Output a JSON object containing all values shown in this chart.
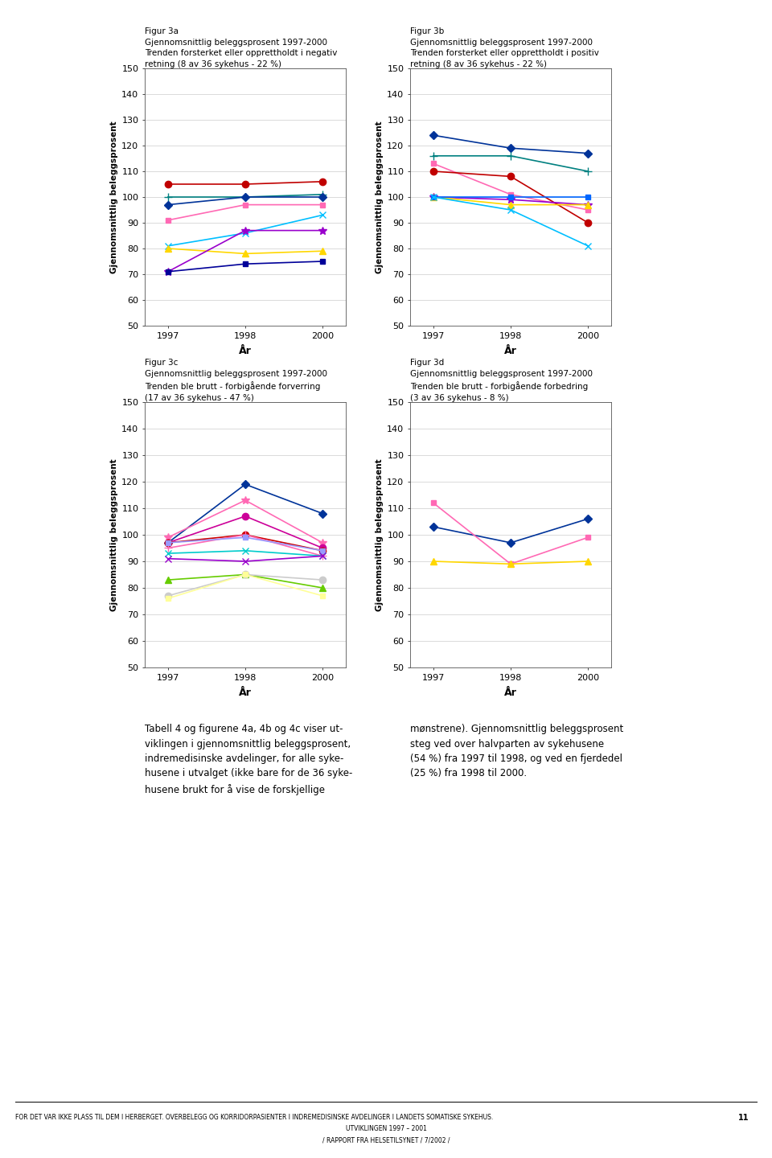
{
  "years": [
    1997,
    1998,
    2000
  ],
  "fig3a_title_line1": "Figur 3a",
  "fig3a_title_line2": "Gjennomsnittlig beleggsprosent 1997-2000",
  "fig3a_title_line3": "Trenden forsterket eller opprettholdt i negativ",
  "fig3a_title_line4": "retning (8 av 36 sykehus - 22 %)",
  "fig3a_series": [
    {
      "color": "#C00000",
      "marker": "o",
      "data": [
        105,
        105,
        106
      ],
      "ms": 6
    },
    {
      "color": "#008080",
      "marker": "+",
      "data": [
        100,
        100,
        101
      ],
      "ms": 7
    },
    {
      "color": "#003399",
      "marker": "D",
      "data": [
        97,
        100,
        100
      ],
      "ms": 5
    },
    {
      "color": "#FF69B4",
      "marker": "s",
      "data": [
        91,
        97,
        97
      ],
      "ms": 5
    },
    {
      "color": "#00BFFF",
      "marker": "x",
      "data": [
        81,
        86,
        93
      ],
      "ms": 6
    },
    {
      "color": "#FFD700",
      "marker": "^",
      "data": [
        80,
        78,
        79
      ],
      "ms": 6
    },
    {
      "color": "#9900CC",
      "marker": "*",
      "data": [
        71,
        87,
        87
      ],
      "ms": 7
    },
    {
      "color": "#000099",
      "marker": "s",
      "data": [
        71,
        74,
        75
      ],
      "ms": 5
    }
  ],
  "fig3b_title_line1": "Figur 3b",
  "fig3b_title_line2": "Gjennomsnittlig beleggsprosent 1997-2000",
  "fig3b_title_line3": "Trenden forsterket eller opprettholdt i positiv",
  "fig3b_title_line4": "retning (8 av 36 sykehus - 22 %)",
  "fig3b_series": [
    {
      "color": "#003399",
      "marker": "D",
      "data": [
        124,
        119,
        117
      ],
      "ms": 5
    },
    {
      "color": "#008080",
      "marker": "+",
      "data": [
        116,
        116,
        110
      ],
      "ms": 7
    },
    {
      "color": "#FF69B4",
      "marker": "s",
      "data": [
        113,
        101,
        95
      ],
      "ms": 5
    },
    {
      "color": "#C00000",
      "marker": "o",
      "data": [
        110,
        108,
        90
      ],
      "ms": 6
    },
    {
      "color": "#9900CC",
      "marker": "*",
      "data": [
        100,
        99,
        97
      ],
      "ms": 7
    },
    {
      "color": "#FFD700",
      "marker": "^",
      "data": [
        100,
        97,
        97
      ],
      "ms": 6
    },
    {
      "color": "#0066FF",
      "marker": "s",
      "data": [
        100,
        100,
        100
      ],
      "ms": 5
    },
    {
      "color": "#00BFFF",
      "marker": "x",
      "data": [
        100,
        95,
        81
      ],
      "ms": 6
    }
  ],
  "fig3c_title_line1": "Figur 3c",
  "fig3c_title_line2": "Gjennomsnittlig beleggsprosent 1997-2000",
  "fig3c_title_line3": "Trenden ble brutt - forbigående forverring",
  "fig3c_title_line4": "(17 av 36 sykehus - 47 %)",
  "fig3c_series": [
    {
      "color": "#003399",
      "marker": "D",
      "data": [
        97,
        119,
        108
      ],
      "ms": 5
    },
    {
      "color": "#FF69B4",
      "marker": "*",
      "data": [
        99,
        113,
        97
      ],
      "ms": 7
    },
    {
      "color": "#CC0099",
      "marker": "o",
      "data": [
        97,
        107,
        95
      ],
      "ms": 6
    },
    {
      "color": "#CC0000",
      "marker": "o",
      "data": [
        97,
        100,
        94
      ],
      "ms": 6
    },
    {
      "color": "#FF69B4",
      "marker": "+",
      "data": [
        95,
        100,
        92
      ],
      "ms": 7
    },
    {
      "color": "#9999FF",
      "marker": "s",
      "data": [
        97,
        99,
        94
      ],
      "ms": 5
    },
    {
      "color": "#00CCCC",
      "marker": "x",
      "data": [
        93,
        94,
        92
      ],
      "ms": 6
    },
    {
      "color": "#9900CC",
      "marker": "x",
      "data": [
        91,
        90,
        92
      ],
      "ms": 6
    },
    {
      "color": "#66CC00",
      "marker": "^",
      "data": [
        83,
        85,
        80
      ],
      "ms": 6
    },
    {
      "color": "#CCCCCC",
      "marker": "o",
      "data": [
        77,
        85,
        83
      ],
      "ms": 6
    },
    {
      "color": "#FFFF99",
      "marker": "s",
      "data": [
        76,
        85,
        77
      ],
      "ms": 5
    }
  ],
  "fig3d_title_line1": "Figur 3d",
  "fig3d_title_line2": "Gjennomsnittlig beleggsprosent 1997-2000",
  "fig3d_title_line3": "Trenden ble brutt - forbigående forbedring",
  "fig3d_title_line4": "(3 av 36 sykehus - 8 %)",
  "fig3d_series": [
    {
      "color": "#003399",
      "marker": "D",
      "data": [
        103,
        97,
        106
      ],
      "ms": 5
    },
    {
      "color": "#FF69B4",
      "marker": "s",
      "data": [
        112,
        89,
        99
      ],
      "ms": 5
    },
    {
      "color": "#FFD700",
      "marker": "^",
      "data": [
        90,
        89,
        90
      ],
      "ms": 6
    }
  ],
  "ylabel": "Gjennomsnittlig beleggsprosent",
  "xlabel": "År",
  "ylim": [
    50,
    150
  ],
  "yticks": [
    50,
    60,
    70,
    80,
    90,
    100,
    110,
    120,
    130,
    140,
    150
  ],
  "body_text_left": "Tabell 4 og figurene 4a, 4b og 4c viser ut-\nviklingen i gjennomsnittlig beleggsprosent,\nindremedisinske avdelinger, for alle syke-\nhusene i utvalget (ikke bare for de 36 syke-\nhusene brukt for å vise de forskjellige",
  "body_text_right": "mønstrene). Gjennomsnittlig beleggsprosent\nsteg ved over halvparten av sykehusene\n(54 %) fra 1997 til 1998, og ved en fjerdedel\n(25 %) fra 1998 til 2000.",
  "footer_left": "FOR DET VAR IKKE PLASS TIL DEM I HERBERGET. OVERBELEGG OG KORRIDORPASIENTER I INDREMEDISINSKE AVDELINGER I LANDETS SOMATISKE SYKEHUS.",
  "footer_num": "11",
  "footer_line2": "UTVIKLINGEN 1997 – 2001",
  "footer_line3": "/ RAPPORT FRA HELSETILSYNET / 7/2002 /",
  "background_color": "#ffffff"
}
